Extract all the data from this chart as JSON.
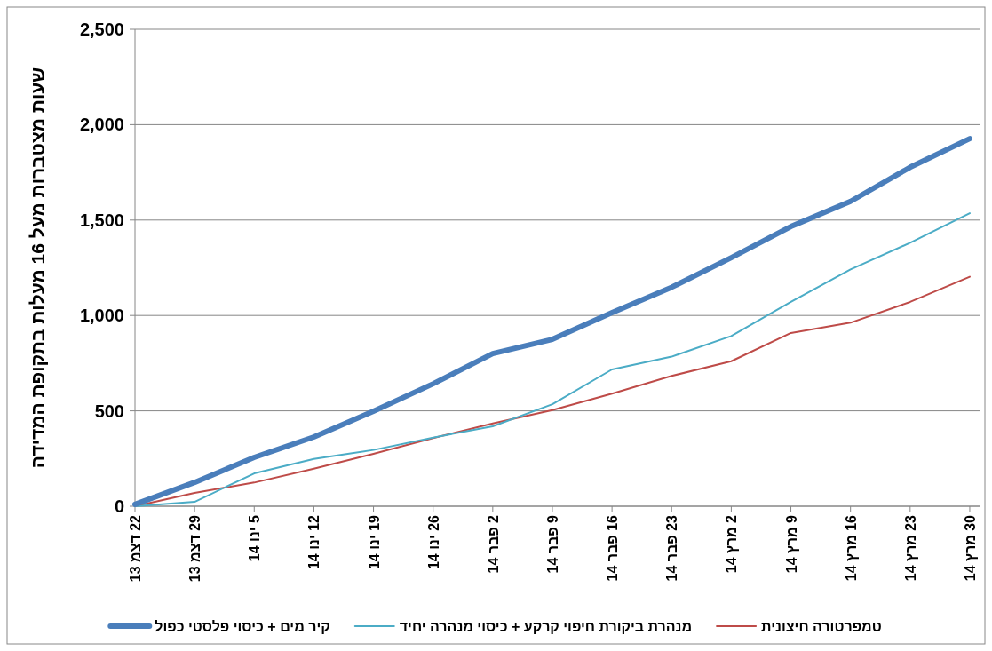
{
  "chart_data": {
    "type": "line",
    "ylabel": "שעות מצטברות מעל 16 מעלות בתקופת המדידה",
    "categories": [
      "22 דצמ 13",
      "29 דצמ 13",
      "5 ינו 14",
      "12 ינו 14",
      "19 ינו 14",
      "26 ינו 14",
      "2 פבר 14",
      "9 פבר 14",
      "16 פבר 14",
      "23 פבר 14",
      "2 מרץ 14",
      "9 מרץ 14",
      "16 מרץ 14",
      "23 מרץ 14",
      "30 מרץ 14"
    ],
    "ylim": [
      0,
      2500
    ],
    "yticks": [
      0,
      500,
      {
        "value": 1000,
        "label": "1,000"
      },
      {
        "value": 1500,
        "label": "1,500"
      },
      {
        "value": 2000,
        "label": "2,000"
      },
      {
        "value": 2500,
        "label": "2,500"
      }
    ],
    "grid": "y",
    "legend": "bottom",
    "marker": "none",
    "line_style": "solid",
    "series": [
      {
        "name": "קיר מים + כיסוי פלסטי כפול",
        "color": "#4a7ebb",
        "values": [
          10,
          125,
          256,
          363,
          498,
          642,
          800,
          875,
          1015,
          1148,
          1303,
          1466,
          1598,
          1777,
          1927
        ]
      },
      {
        "name": "מנהרת ביקורת חיפוי קרקע + כיסוי מנהרה יחיד",
        "color": "#4bacc6",
        "values": [
          0,
          23,
          172,
          248,
          295,
          360,
          419,
          535,
          717,
          784,
          892,
          1071,
          1241,
          1381,
          1536
        ]
      },
      {
        "name": "טמפרטורה חיצונית",
        "color": "#be4b48",
        "values": [
          0,
          70,
          124,
          197,
          275,
          357,
          434,
          504,
          590,
          683,
          760,
          908,
          962,
          1071,
          1203
        ]
      }
    ]
  }
}
